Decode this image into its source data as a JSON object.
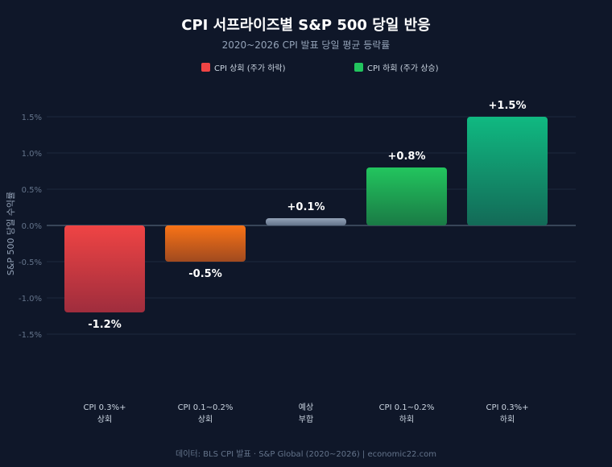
{
  "title": "CPI 서프라이즈별 S&P 500 당일 반응",
  "subtitle": "2020~2026 CPI 발표 당일 평균 등락률",
  "footer": "데이터: BLS CPI 발표 · S&P Global (2020~2026) | economic22.com",
  "colors": {
    "background": "#0f1729",
    "grid": "#1e2a3d",
    "zero_line": "#475569",
    "text": "#ffffff",
    "muted": "#94a3b8",
    "legend_up": "#ef4444",
    "legend_down": "#22c55e"
  },
  "chart_data": {
    "type": "bar",
    "ylabel": "S&P 500 당일 수익률",
    "ylim": [
      -1.5,
      1.5
    ],
    "yticks": [
      1.5,
      1.0,
      0.5,
      0.0,
      -0.5,
      -1.0,
      -1.5
    ],
    "ytick_labels": [
      "1.5%",
      "1.0%",
      "0.5%",
      "0.0%",
      "-0.5%",
      "-1.0%",
      "-1.5%"
    ],
    "grid": true,
    "legend": [
      {
        "label": "CPI 상회 (주가 하락)",
        "color": "#ef4444"
      },
      {
        "label": "CPI 하회 (주가 상승)",
        "color": "#22c55e"
      }
    ],
    "legend_position": "top",
    "categories": [
      [
        "CPI 0.3%+",
        "상회"
      ],
      [
        "CPI 0.1~0.2%",
        "상회"
      ],
      [
        "예상",
        "부합"
      ],
      [
        "CPI 0.1~0.2%",
        "하회"
      ],
      [
        "CPI 0.3%+",
        "하회"
      ]
    ],
    "values": [
      -1.2,
      -0.5,
      0.1,
      0.8,
      1.5
    ],
    "value_labels": [
      "-1.2%",
      "-0.5%",
      "+0.1%",
      "+0.8%",
      "+1.5%"
    ],
    "bar_colors": [
      [
        "#ef4444",
        "#9f2d3d"
      ],
      [
        "#f97316",
        "#a04a1f"
      ],
      [
        "#94a3b8",
        "#64748b"
      ],
      [
        "#22c55e",
        "#1a7a45"
      ],
      [
        "#10b981",
        "#136a57"
      ]
    ]
  }
}
